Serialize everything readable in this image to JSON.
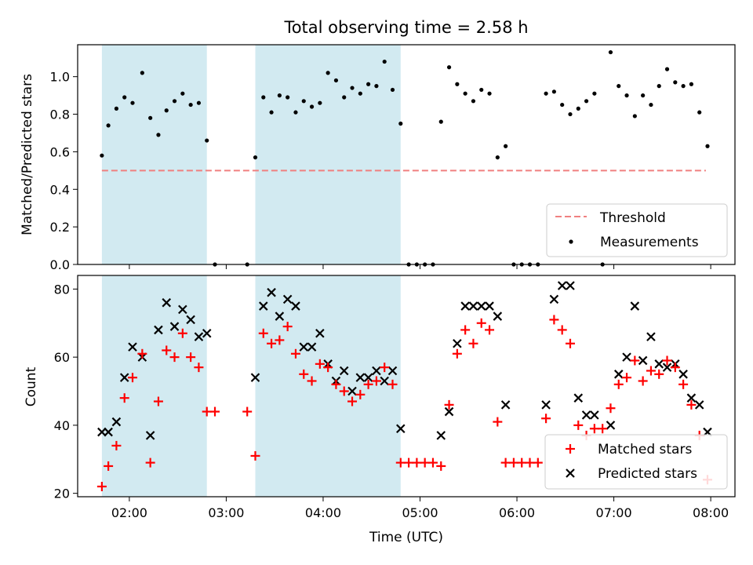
{
  "figure": {
    "title": "Total observing time = 2.58 h"
  },
  "colors": {
    "band": "#add8e6",
    "threshold": "#f08080",
    "measurement": "#000000",
    "matched": "#ff0000",
    "predicted": "#000000"
  },
  "chart_data": [
    {
      "type": "scatter",
      "title": "Total observing time = 2.58 h",
      "xlabel": "",
      "ylabel": "Matched/Predicted stars",
      "ylim": [
        0,
        1.17
      ],
      "yticks": [
        0.0,
        0.2,
        0.4,
        0.6,
        0.8,
        1.0
      ],
      "ytick_labels": [
        "0.0",
        "0.2",
        "0.4",
        "0.6",
        "0.8",
        "1.0"
      ],
      "xticks": [
        "02:00",
        "03:00",
        "04:00",
        "05:00",
        "06:00",
        "07:00",
        "08:00"
      ],
      "shaded_intervals": [
        [
          "01:43",
          "02:48"
        ],
        [
          "03:18",
          "04:48"
        ]
      ],
      "threshold": {
        "name": "Threshold",
        "value": 0.5,
        "x_range": [
          "01:43",
          "07:57"
        ]
      },
      "legend": {
        "position": "lower-right",
        "entries": [
          "Threshold",
          "Measurements"
        ]
      },
      "series": [
        {
          "name": "Measurements",
          "marker": "dot",
          "points": [
            [
              "01:43",
              0.58
            ],
            [
              "01:47",
              0.74
            ],
            [
              "01:52",
              0.83
            ],
            [
              "01:57",
              0.89
            ],
            [
              "02:02",
              0.86
            ],
            [
              "02:08",
              1.02
            ],
            [
              "02:13",
              0.78
            ],
            [
              "02:18",
              0.69
            ],
            [
              "02:23",
              0.82
            ],
            [
              "02:28",
              0.87
            ],
            [
              "02:33",
              0.91
            ],
            [
              "02:38",
              0.85
            ],
            [
              "02:43",
              0.86
            ],
            [
              "02:48",
              0.66
            ],
            [
              "02:53",
              0.0
            ],
            [
              "03:13",
              0.0
            ],
            [
              "03:18",
              0.57
            ],
            [
              "03:23",
              0.89
            ],
            [
              "03:28",
              0.81
            ],
            [
              "03:33",
              0.9
            ],
            [
              "03:38",
              0.89
            ],
            [
              "03:43",
              0.81
            ],
            [
              "03:48",
              0.87
            ],
            [
              "03:53",
              0.84
            ],
            [
              "03:58",
              0.86
            ],
            [
              "04:03",
              1.02
            ],
            [
              "04:08",
              0.98
            ],
            [
              "04:13",
              0.89
            ],
            [
              "04:18",
              0.94
            ],
            [
              "04:23",
              0.91
            ],
            [
              "04:28",
              0.96
            ],
            [
              "04:33",
              0.95
            ],
            [
              "04:38",
              1.08
            ],
            [
              "04:43",
              0.93
            ],
            [
              "04:48",
              0.75
            ],
            [
              "04:53",
              0.0
            ],
            [
              "04:58",
              0.0
            ],
            [
              "05:03",
              0.0
            ],
            [
              "05:08",
              0.0
            ],
            [
              "05:13",
              0.76
            ],
            [
              "05:18",
              1.05
            ],
            [
              "05:23",
              0.96
            ],
            [
              "05:28",
              0.91
            ],
            [
              "05:33",
              0.87
            ],
            [
              "05:38",
              0.93
            ],
            [
              "05:43",
              0.91
            ],
            [
              "05:48",
              0.57
            ],
            [
              "05:53",
              0.63
            ],
            [
              "05:58",
              0.0
            ],
            [
              "06:03",
              0.0
            ],
            [
              "06:08",
              0.0
            ],
            [
              "06:13",
              0.0
            ],
            [
              "06:18",
              0.91
            ],
            [
              "06:23",
              0.92
            ],
            [
              "06:28",
              0.85
            ],
            [
              "06:33",
              0.8
            ],
            [
              "06:38",
              0.83
            ],
            [
              "06:43",
              0.87
            ],
            [
              "06:48",
              0.91
            ],
            [
              "06:53",
              0.0
            ],
            [
              "06:58",
              1.13
            ],
            [
              "07:03",
              0.95
            ],
            [
              "07:08",
              0.9
            ],
            [
              "07:13",
              0.79
            ],
            [
              "07:18",
              0.9
            ],
            [
              "07:23",
              0.85
            ],
            [
              "07:28",
              0.95
            ],
            [
              "07:33",
              1.04
            ],
            [
              "07:38",
              0.97
            ],
            [
              "07:43",
              0.95
            ],
            [
              "07:48",
              0.96
            ],
            [
              "07:53",
              0.81
            ],
            [
              "07:58",
              0.63
            ]
          ]
        }
      ]
    },
    {
      "type": "scatter",
      "xlabel": "Time (UTC)",
      "ylabel": "Count",
      "ylim": [
        19,
        84
      ],
      "yticks": [
        20,
        40,
        60,
        80
      ],
      "ytick_labels": [
        "20",
        "40",
        "60",
        "80"
      ],
      "xticks": [
        "02:00",
        "03:00",
        "04:00",
        "05:00",
        "06:00",
        "07:00",
        "08:00"
      ],
      "shaded_intervals": [
        [
          "01:43",
          "02:48"
        ],
        [
          "03:18",
          "04:48"
        ]
      ],
      "legend": {
        "position": "lower-right",
        "entries": [
          "Matched stars",
          "Predicted stars"
        ]
      },
      "series": [
        {
          "name": "Matched stars",
          "marker": "plus",
          "points": [
            [
              "01:43",
              22
            ],
            [
              "01:47",
              28
            ],
            [
              "01:52",
              34
            ],
            [
              "01:57",
              48
            ],
            [
              "02:02",
              54
            ],
            [
              "02:08",
              61
            ],
            [
              "02:13",
              29
            ],
            [
              "02:18",
              47
            ],
            [
              "02:23",
              62
            ],
            [
              "02:28",
              60
            ],
            [
              "02:33",
              67
            ],
            [
              "02:38",
              60
            ],
            [
              "02:43",
              57
            ],
            [
              "02:48",
              44
            ],
            [
              "02:53",
              44
            ],
            [
              "03:13",
              44
            ],
            [
              "03:18",
              31
            ],
            [
              "03:23",
              67
            ],
            [
              "03:28",
              64
            ],
            [
              "03:33",
              65
            ],
            [
              "03:38",
              69
            ],
            [
              "03:43",
              61
            ],
            [
              "03:48",
              55
            ],
            [
              "03:53",
              53
            ],
            [
              "03:58",
              58
            ],
            [
              "04:03",
              57
            ],
            [
              "04:08",
              52
            ],
            [
              "04:13",
              50
            ],
            [
              "04:18",
              47
            ],
            [
              "04:23",
              49
            ],
            [
              "04:28",
              52
            ],
            [
              "04:33",
              53
            ],
            [
              "04:38",
              57
            ],
            [
              "04:43",
              52
            ],
            [
              "04:48",
              29
            ],
            [
              "04:53",
              29
            ],
            [
              "04:58",
              29
            ],
            [
              "05:03",
              29
            ],
            [
              "05:08",
              29
            ],
            [
              "05:13",
              28
            ],
            [
              "05:18",
              46
            ],
            [
              "05:23",
              61
            ],
            [
              "05:28",
              68
            ],
            [
              "05:33",
              64
            ],
            [
              "05:38",
              70
            ],
            [
              "05:43",
              68
            ],
            [
              "05:48",
              41
            ],
            [
              "05:53",
              29
            ],
            [
              "05:58",
              29
            ],
            [
              "06:03",
              29
            ],
            [
              "06:08",
              29
            ],
            [
              "06:13",
              29
            ],
            [
              "06:18",
              42
            ],
            [
              "06:23",
              71
            ],
            [
              "06:28",
              68
            ],
            [
              "06:33",
              64
            ],
            [
              "06:38",
              40
            ],
            [
              "06:43",
              37
            ],
            [
              "06:48",
              39
            ],
            [
              "06:53",
              39
            ],
            [
              "06:58",
              45
            ],
            [
              "07:03",
              52
            ],
            [
              "07:08",
              54
            ],
            [
              "07:13",
              59
            ],
            [
              "07:18",
              53
            ],
            [
              "07:23",
              56
            ],
            [
              "07:28",
              55
            ],
            [
              "07:33",
              59
            ],
            [
              "07:38",
              57
            ],
            [
              "07:43",
              52
            ],
            [
              "07:48",
              46
            ],
            [
              "07:53",
              37
            ],
            [
              "07:58",
              24
            ]
          ]
        },
        {
          "name": "Predicted stars",
          "marker": "x",
          "points": [
            [
              "01:43",
              38
            ],
            [
              "01:47",
              38
            ],
            [
              "01:52",
              41
            ],
            [
              "01:57",
              54
            ],
            [
              "02:02",
              63
            ],
            [
              "02:08",
              60
            ],
            [
              "02:13",
              37
            ],
            [
              "02:18",
              68
            ],
            [
              "02:23",
              76
            ],
            [
              "02:28",
              69
            ],
            [
              "02:33",
              74
            ],
            [
              "02:38",
              71
            ],
            [
              "02:43",
              66
            ],
            [
              "02:48",
              67
            ],
            [
              "03:18",
              54
            ],
            [
              "03:23",
              75
            ],
            [
              "03:28",
              79
            ],
            [
              "03:33",
              72
            ],
            [
              "03:38",
              77
            ],
            [
              "03:43",
              75
            ],
            [
              "03:48",
              63
            ],
            [
              "03:53",
              63
            ],
            [
              "03:58",
              67
            ],
            [
              "04:03",
              58
            ],
            [
              "04:08",
              53
            ],
            [
              "04:13",
              56
            ],
            [
              "04:18",
              50
            ],
            [
              "04:23",
              54
            ],
            [
              "04:28",
              54
            ],
            [
              "04:33",
              56
            ],
            [
              "04:38",
              53
            ],
            [
              "04:43",
              56
            ],
            [
              "04:48",
              39
            ],
            [
              "05:13",
              37
            ],
            [
              "05:18",
              44
            ],
            [
              "05:23",
              64
            ],
            [
              "05:28",
              75
            ],
            [
              "05:33",
              75
            ],
            [
              "05:38",
              75
            ],
            [
              "05:43",
              75
            ],
            [
              "05:48",
              72
            ],
            [
              "05:53",
              46
            ],
            [
              "06:18",
              46
            ],
            [
              "06:23",
              77
            ],
            [
              "06:28",
              81
            ],
            [
              "06:33",
              81
            ],
            [
              "06:38",
              48
            ],
            [
              "06:43",
              43
            ],
            [
              "06:48",
              43
            ],
            [
              "06:58",
              40
            ],
            [
              "07:03",
              55
            ],
            [
              "07:08",
              60
            ],
            [
              "07:13",
              75
            ],
            [
              "07:18",
              59
            ],
            [
              "07:23",
              66
            ],
            [
              "07:28",
              58
            ],
            [
              "07:33",
              57
            ],
            [
              "07:38",
              58
            ],
            [
              "07:43",
              55
            ],
            [
              "07:48",
              48
            ],
            [
              "07:53",
              46
            ],
            [
              "07:58",
              38
            ]
          ]
        }
      ]
    }
  ]
}
